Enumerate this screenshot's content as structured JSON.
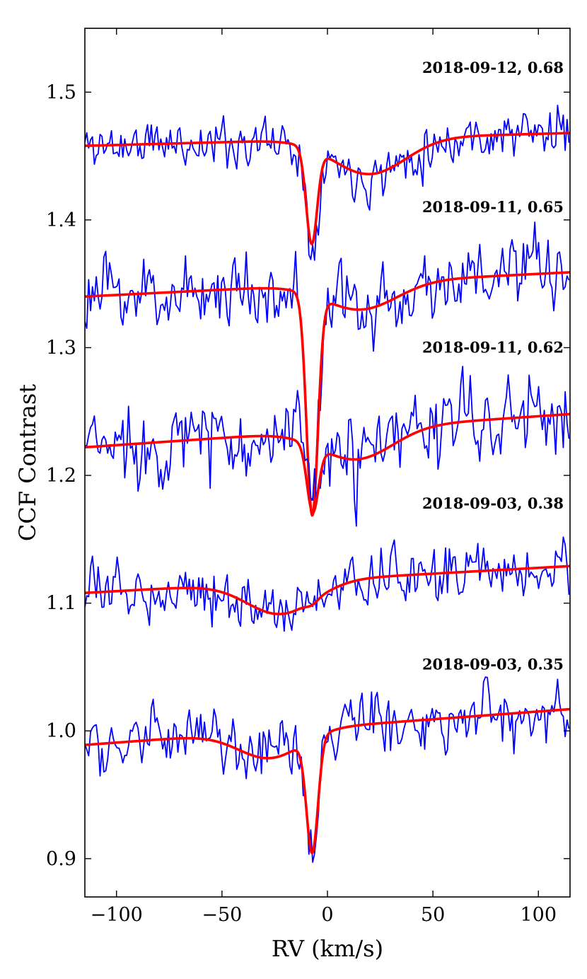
{
  "chart_data": {
    "type": "line",
    "xlabel": "RV (km/s)",
    "ylabel": "CCF Contrast",
    "xlim": [
      -115,
      115
    ],
    "ylim": [
      0.87,
      1.55
    ],
    "xticks": [
      -100,
      -50,
      0,
      50,
      100
    ],
    "xtick_labels": [
      "−100",
      "−50",
      "0",
      "50",
      "100"
    ],
    "yticks": [
      0.9,
      1.0,
      1.1,
      1.2,
      1.3,
      1.4,
      1.5
    ],
    "ytick_labels": [
      "0.9",
      "1.0",
      "1.1",
      "1.2",
      "1.3",
      "1.4",
      "1.5"
    ],
    "colors": {
      "observed": "#0000ff",
      "model": "#ff0000"
    },
    "observations": [
      {
        "label": "2018-09-12, 0.68",
        "label_x": 112,
        "label_y": 1.515,
        "base_left": 1.458,
        "base_right": 1.468,
        "wing_center": -10,
        "wing_depth": 0.0,
        "wing_sigma": 20,
        "bump_center": 20,
        "bump_depth": 0.028,
        "bump_sigma": 17,
        "line_center": -7.5,
        "line_depth": 0.074,
        "line_sigma": 2.6,
        "noise_amp": 0.016,
        "seed": 11
      },
      {
        "label": "2018-09-11, 0.65",
        "label_x": 112,
        "label_y": 1.406,
        "base_left": 1.34,
        "base_right": 1.359,
        "wing_center": -10,
        "wing_depth": 0.0,
        "wing_sigma": 20,
        "bump_center": 16,
        "bump_depth": 0.021,
        "bump_sigma": 17,
        "line_center": -7.2,
        "line_depth": 0.172,
        "line_sigma": 2.7,
        "noise_amp": 0.023,
        "seed": 23
      },
      {
        "label": "2018-09-11, 0.62",
        "label_x": 112,
        "label_y": 1.296,
        "base_left": 1.222,
        "base_right": 1.248,
        "wing_center": -10,
        "wing_depth": 0.0,
        "wing_sigma": 20,
        "bump_center": 14,
        "bump_depth": 0.024,
        "bump_sigma": 17,
        "line_center": -7.0,
        "line_depth": 0.052,
        "line_sigma": 2.7,
        "noise_amp": 0.026,
        "seed": 37
      },
      {
        "label": "2018-09-03, 0.38",
        "label_x": 112,
        "label_y": 1.174,
        "base_left": 1.108,
        "base_right": 1.129,
        "wing_center": -22,
        "wing_depth": 0.025,
        "wing_sigma": 16,
        "bump_center": 0,
        "bump_depth": 0.0,
        "bump_sigma": 17,
        "line_center": -7.2,
        "line_depth": 0.003,
        "line_sigma": 2.7,
        "noise_amp": 0.017,
        "seed": 53
      },
      {
        "label": "2018-09-03, 0.35",
        "label_x": 112,
        "label_y": 1.048,
        "base_left": 0.989,
        "base_right": 1.017,
        "wing_center": -27,
        "wing_depth": 0.021,
        "wing_sigma": 15,
        "bump_center": 0,
        "bump_depth": 0.0,
        "bump_sigma": 17,
        "line_center": -7.2,
        "line_depth": 0.089,
        "line_sigma": 2.7,
        "noise_amp": 0.019,
        "seed": 71
      }
    ]
  }
}
